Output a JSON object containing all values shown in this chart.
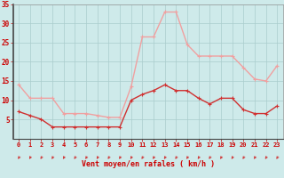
{
  "hours": [
    0,
    1,
    2,
    3,
    4,
    5,
    6,
    7,
    8,
    9,
    10,
    11,
    12,
    13,
    14,
    15,
    16,
    17,
    18,
    19,
    20,
    21,
    22,
    23
  ],
  "wind_avg": [
    7,
    6,
    5,
    3,
    3,
    3,
    3,
    3,
    3,
    3,
    10,
    11.5,
    12.5,
    14,
    12.5,
    12.5,
    10.5,
    9,
    10.5,
    10.5,
    7.5,
    6.5,
    6.5,
    8.5
  ],
  "wind_gust": [
    14,
    10.5,
    10.5,
    10.5,
    6.5,
    6.5,
    6.5,
    6,
    5.5,
    5.5,
    13.5,
    26.5,
    26.5,
    33,
    33,
    24.5,
    21.5,
    21.5,
    21.5,
    21.5,
    18.5,
    15.5,
    15,
    19
  ],
  "avg_color": "#d03030",
  "gust_color": "#f0a0a0",
  "bg_color": "#ceeaea",
  "grid_color": "#aacccc",
  "text_color": "#cc0000",
  "xlabel": "Vent moyen/en rafales ( km/h )",
  "ylim": [
    0,
    35
  ],
  "yticks": [
    5,
    10,
    15,
    20,
    25,
    30,
    35
  ],
  "marker_size": 2.5,
  "line_width": 1.0
}
